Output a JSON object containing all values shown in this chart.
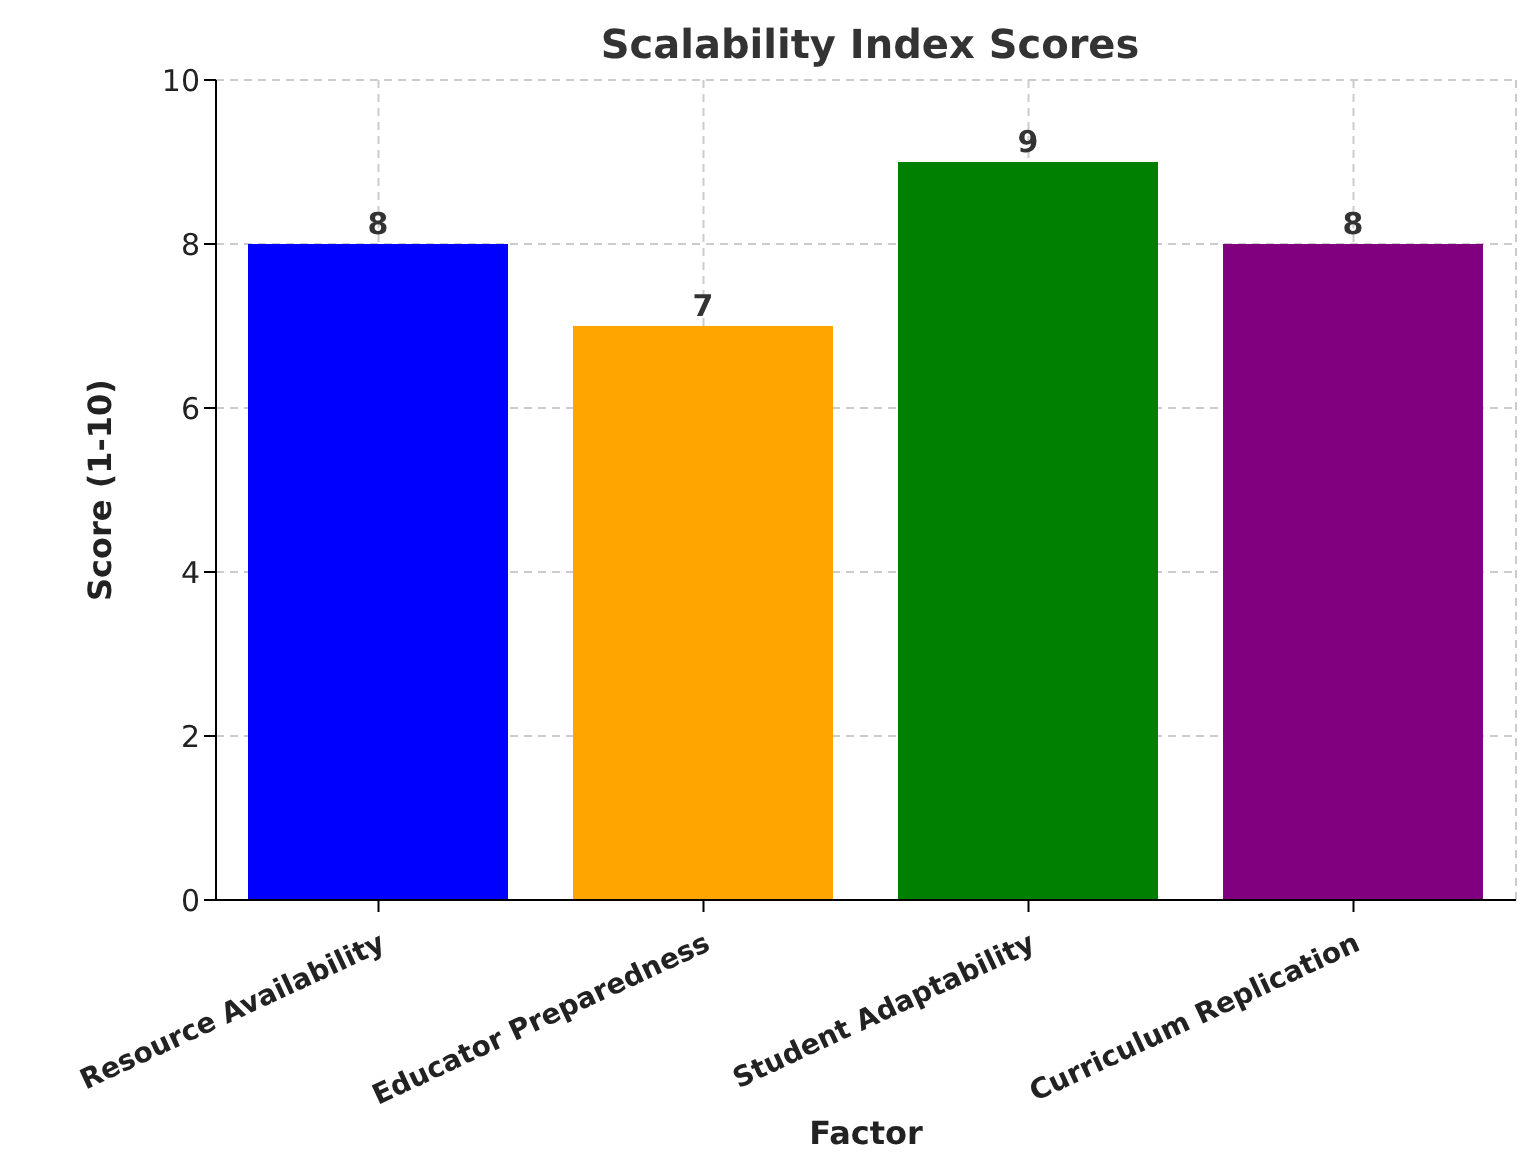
{
  "chart_data": {
    "type": "bar",
    "title": "Scalability Index Scores",
    "xlabel": "Factor",
    "ylabel": "Score (1-10)",
    "categories": [
      "Resource Availability",
      "Educator Preparedness",
      "Student Adaptability",
      "Curriculum Replication"
    ],
    "values": [
      8,
      7,
      9,
      8
    ],
    "colors": [
      "#0000ff",
      "#ffa500",
      "#008000",
      "#800080"
    ],
    "ylim": [
      0,
      10
    ],
    "yticks": [
      0,
      2,
      4,
      6,
      8,
      10
    ],
    "grid": true,
    "data_labels": true
  }
}
